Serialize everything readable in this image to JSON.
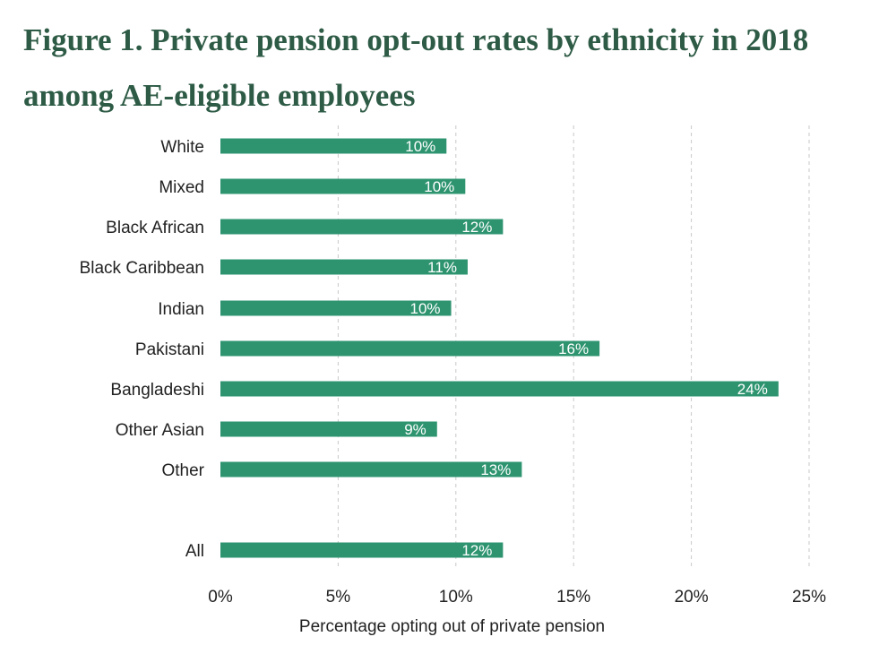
{
  "figure": {
    "title": "Figure 1. Private pension opt-out rates by ethnicity in 2018 among AE-eligible employees"
  },
  "colors": {
    "bar": "#2e9470",
    "title": "#2e5b46",
    "grid": "#c8c8c8"
  },
  "chart_data": {
    "type": "bar",
    "orientation": "horizontal",
    "title": "Figure 1. Private pension opt-out rates by ethnicity in 2018 among AE-eligible employees",
    "xlabel": "Percentage opting out of private pension",
    "ylabel": "",
    "xlim": [
      0,
      25
    ],
    "x_ticks": [
      0,
      5,
      10,
      15,
      20,
      25
    ],
    "x_tick_labels": [
      "0%",
      "5%",
      "10%",
      "15%",
      "20%",
      "25%"
    ],
    "grid": "vertical dashed",
    "categories": [
      "White",
      "Mixed",
      "Black African",
      "Black Caribbean",
      "Indian",
      "Pakistani",
      "Bangladeshi",
      "Other Asian",
      "Other",
      "All"
    ],
    "values": [
      9.6,
      10.4,
      12.0,
      10.5,
      9.8,
      16.1,
      23.7,
      9.2,
      12.8,
      12.0
    ],
    "data_labels": [
      "10%",
      "10%",
      "12%",
      "11%",
      "10%",
      "16%",
      "24%",
      "9%",
      "13%",
      "12%"
    ]
  }
}
